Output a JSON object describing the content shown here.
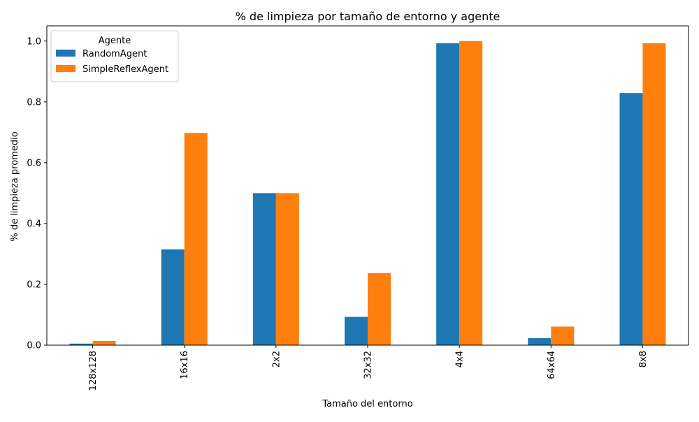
{
  "chart_data": {
    "type": "bar",
    "title": "% de limpieza por tamaño de entorno y agente",
    "xlabel": "Tamaño del entorno",
    "ylabel": "% de limpieza promedio",
    "categories": [
      "128x128",
      "16x16",
      "2x2",
      "32x32",
      "4x4",
      "64x64",
      "8x8"
    ],
    "series": [
      {
        "name": "RandomAgent",
        "color": "#1f77b4",
        "values": [
          0.005,
          0.315,
          0.5,
          0.093,
          0.993,
          0.023,
          0.829
        ]
      },
      {
        "name": "SimpleReflexAgent",
        "color": "#ff7f0e",
        "values": [
          0.014,
          0.698,
          0.5,
          0.237,
          1.0,
          0.061,
          0.993
        ]
      }
    ],
    "ylim": [
      0,
      1.05
    ],
    "yticks": [
      "0.0",
      "0.2",
      "0.4",
      "0.6",
      "0.8",
      "1.0"
    ],
    "legend": {
      "title": "Agente",
      "placement": "top-left"
    },
    "grid": false
  }
}
